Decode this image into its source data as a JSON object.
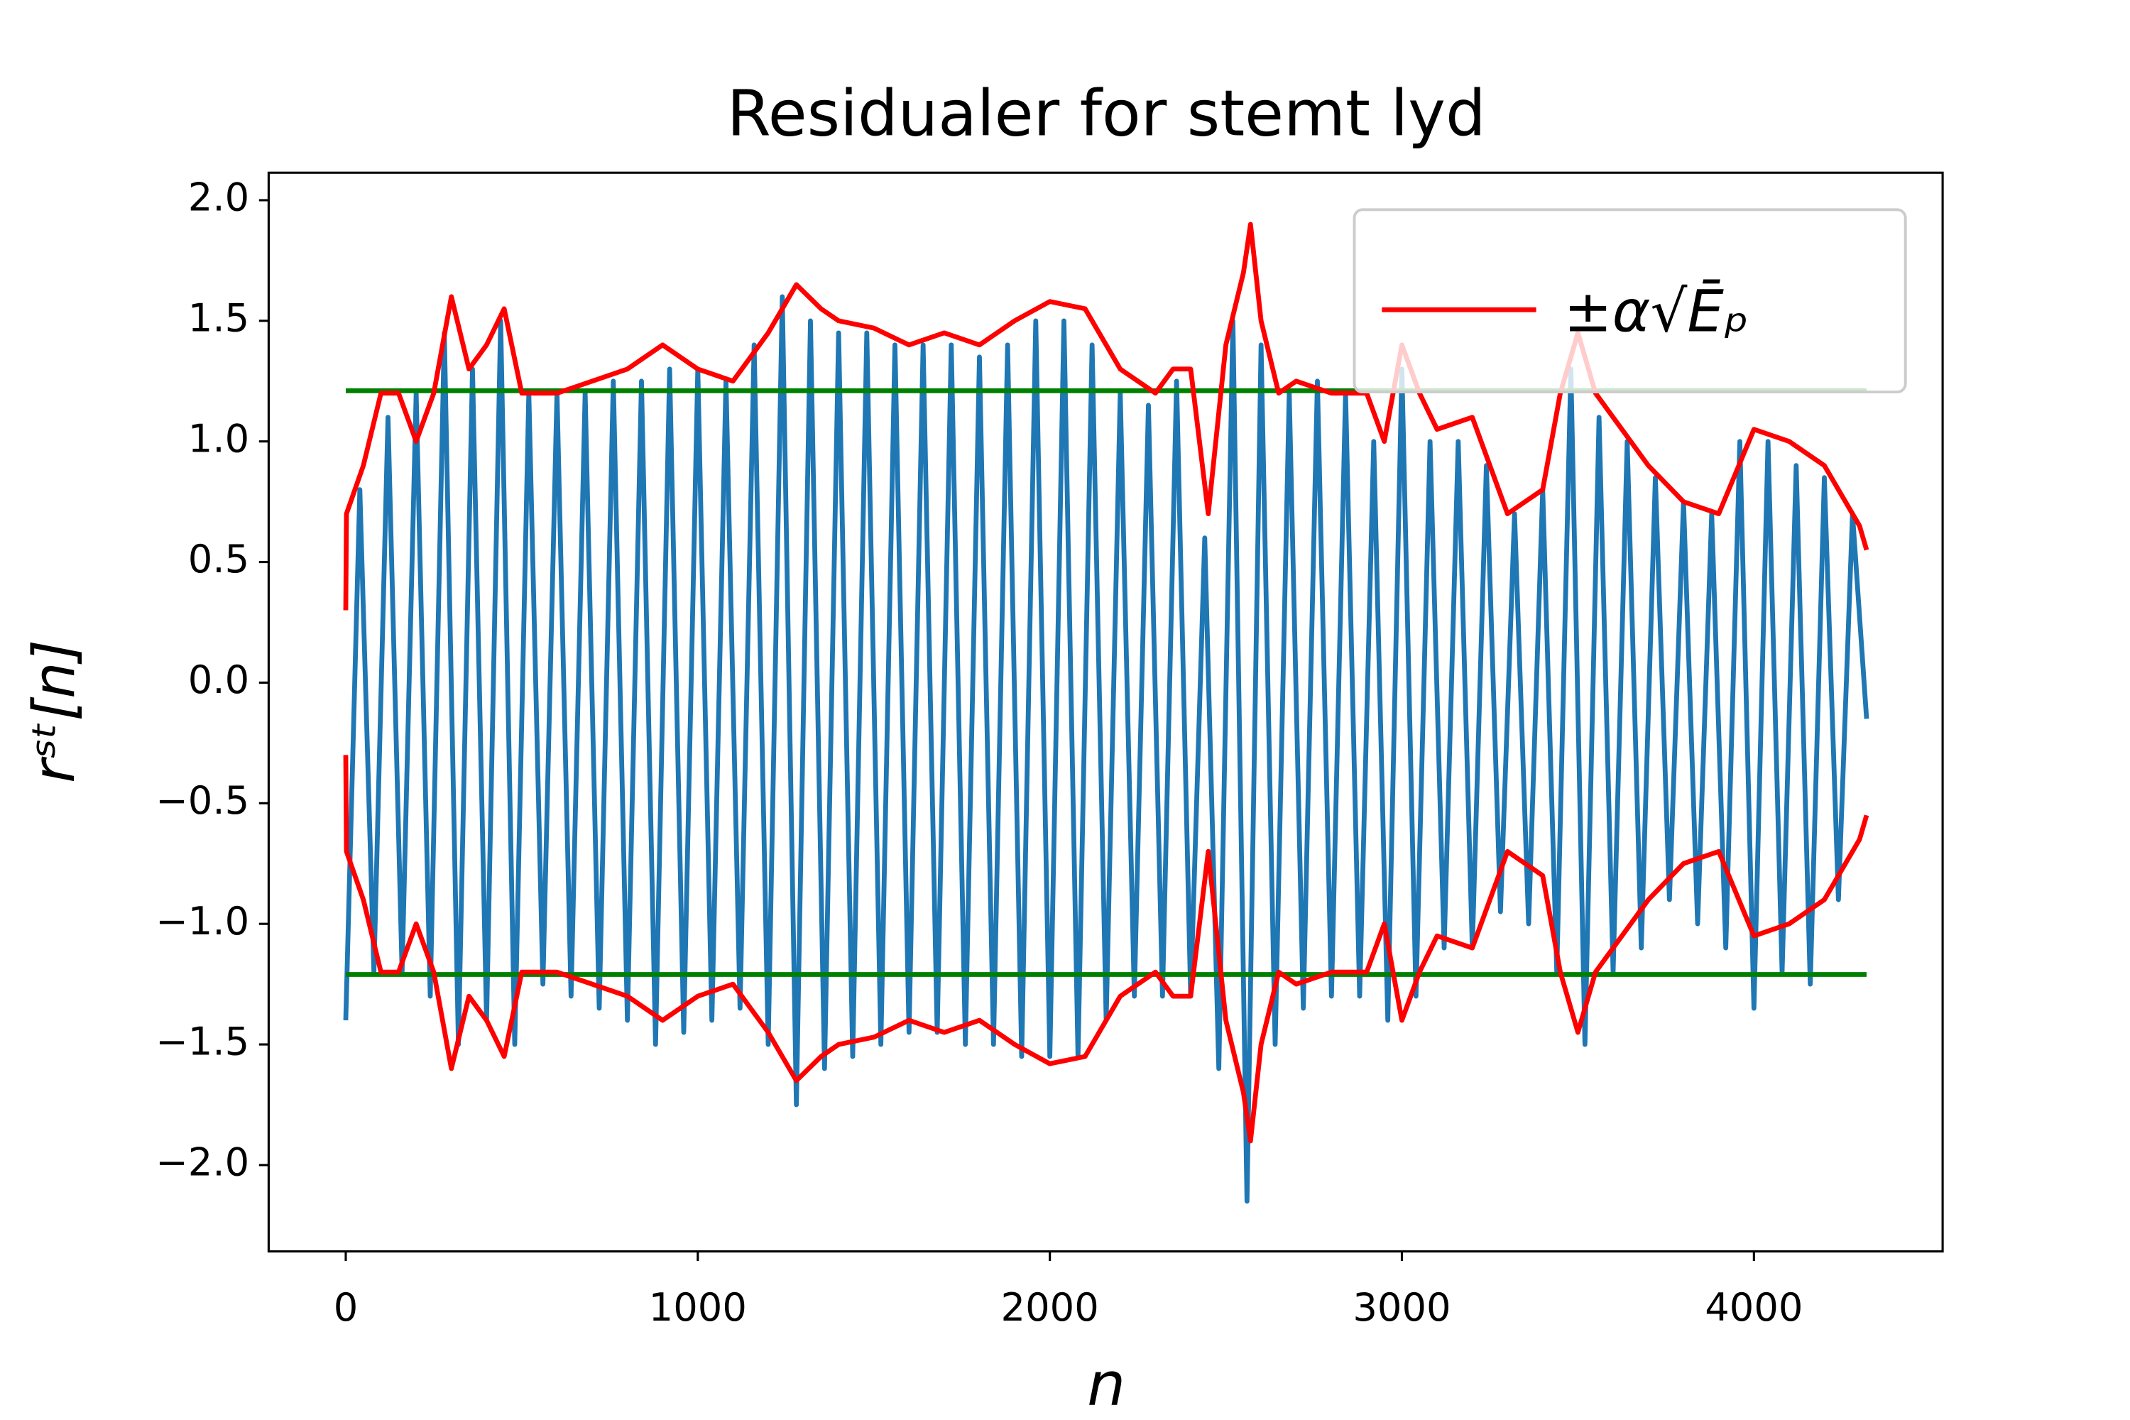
{
  "chart_data": {
    "type": "line",
    "title": "Residualer for stemt lyd",
    "x_label": "n",
    "y_label": "rˢᵗ[n]",
    "xlim": [
      -219,
      4536
    ],
    "ylim": [
      -2.358,
      2.114
    ],
    "xticks": [
      0,
      1000,
      2000,
      3000,
      4000
    ],
    "yticks": [
      {
        "value": -2.0,
        "label": "−2.0"
      },
      {
        "value": -1.5,
        "label": "−1.5"
      },
      {
        "value": -1.0,
        "label": "−1.0"
      },
      {
        "value": -0.5,
        "label": "−0.5"
      },
      {
        "value": 0.0,
        "label": "0.0"
      },
      0.5,
      {
        "value": 1.0,
        "label": "1.0"
      },
      1.5,
      {
        "value": 2.0,
        "label": "2.0"
      }
    ],
    "grid": false,
    "legend": "upper right",
    "series": [
      {
        "color": "#1f77b4",
        "x": [
          0,
          40,
          80,
          120,
          160,
          200,
          240,
          280,
          320,
          360,
          400,
          440,
          480,
          520,
          560,
          600,
          640,
          680,
          720,
          760,
          800,
          840,
          880,
          920,
          960,
          1000,
          1040,
          1080,
          1120,
          1160,
          1200,
          1240,
          1280,
          1320,
          1360,
          1400,
          1440,
          1480,
          1520,
          1560,
          1600,
          1640,
          1680,
          1720,
          1760,
          1800,
          1840,
          1880,
          1920,
          1960,
          2000,
          2040,
          2080,
          2120,
          2160,
          2200,
          2240,
          2280,
          2320,
          2360,
          2400,
          2440,
          2480,
          2520,
          2560,
          2600,
          2640,
          2680,
          2720,
          2760,
          2800,
          2840,
          2880,
          2920,
          2960,
          3000,
          3040,
          3080,
          3120,
          3160,
          3200,
          3240,
          3280,
          3320,
          3360,
          3400,
          3440,
          3480,
          3520,
          3560,
          3600,
          3640,
          3680,
          3720,
          3760,
          3800,
          3840,
          3880,
          3920,
          3960,
          4000,
          4040,
          4080,
          4120,
          4160,
          4200,
          4240,
          4280,
          4320
        ],
        "values": [
          -1.4,
          0.8,
          -1.2,
          1.1,
          -1.2,
          1.2,
          -1.3,
          1.45,
          -1.5,
          1.3,
          -1.4,
          1.5,
          -1.5,
          1.2,
          -1.25,
          1.2,
          -1.3,
          1.2,
          -1.35,
          1.25,
          -1.4,
          1.25,
          -1.5,
          1.3,
          -1.45,
          1.3,
          -1.4,
          1.25,
          -1.35,
          1.4,
          -1.5,
          1.6,
          -1.75,
          1.5,
          -1.6,
          1.45,
          -1.55,
          1.45,
          -1.5,
          1.4,
          -1.45,
          1.4,
          -1.45,
          1.4,
          -1.5,
          1.35,
          -1.5,
          1.4,
          -1.55,
          1.5,
          -1.55,
          1.5,
          -1.55,
          1.4,
          -1.4,
          1.2,
          -1.3,
          1.15,
          -1.3,
          1.25,
          -1.3,
          0.6,
          -1.6,
          1.5,
          -2.15,
          1.4,
          -1.5,
          1.2,
          -1.35,
          1.25,
          -1.3,
          1.2,
          -1.3,
          1.0,
          -1.4,
          1.3,
          -1.3,
          1.0,
          -1.1,
          1.0,
          -1.1,
          0.9,
          -0.95,
          0.7,
          -1.0,
          0.8,
          -1.2,
          1.3,
          -1.5,
          1.1,
          -1.2,
          1.0,
          -1.1,
          0.85,
          -0.9,
          0.75,
          -1.0,
          0.7,
          -1.1,
          1.0,
          -1.35,
          1.0,
          -1.2,
          0.9,
          -1.25,
          0.85,
          -0.9,
          0.7,
          -0.15
        ]
      },
      {
        "name": "±α√Ēₚ",
        "color": "#ff0000",
        "x": [
          0,
          2,
          50,
          100,
          150,
          200,
          250,
          300,
          350,
          400,
          450,
          500,
          600,
          700,
          800,
          900,
          1000,
          1100,
          1200,
          1280,
          1350,
          1400,
          1500,
          1600,
          1700,
          1800,
          1900,
          2000,
          2100,
          2200,
          2300,
          2350,
          2400,
          2450,
          2500,
          2550,
          2570,
          2600,
          2650,
          2700,
          2800,
          2900,
          2950,
          3000,
          3050,
          3100,
          3200,
          3250,
          3300,
          3400,
          3450,
          3500,
          3550,
          3600,
          3700,
          3800,
          3900,
          4000,
          4100,
          4200,
          4300,
          4320
        ],
        "values": [
          0.3,
          0.7,
          0.9,
          1.2,
          1.2,
          1.0,
          1.2,
          1.6,
          1.3,
          1.4,
          1.55,
          1.2,
          1.2,
          1.25,
          1.3,
          1.4,
          1.3,
          1.25,
          1.45,
          1.65,
          1.55,
          1.5,
          1.47,
          1.4,
          1.45,
          1.4,
          1.5,
          1.58,
          1.55,
          1.3,
          1.2,
          1.3,
          1.3,
          0.7,
          1.4,
          1.7,
          1.9,
          1.5,
          1.2,
          1.25,
          1.2,
          1.2,
          1.0,
          1.4,
          1.2,
          1.05,
          1.1,
          0.9,
          0.7,
          0.8,
          1.2,
          1.45,
          1.2,
          1.1,
          0.9,
          0.75,
          0.7,
          1.05,
          1.0,
          0.9,
          0.65,
          0.55
        ]
      },
      {
        "color": "#ff0000",
        "x": [
          0,
          2,
          50,
          100,
          150,
          200,
          250,
          300,
          350,
          400,
          450,
          500,
          600,
          700,
          800,
          900,
          1000,
          1100,
          1200,
          1280,
          1350,
          1400,
          1500,
          1600,
          1700,
          1800,
          1900,
          2000,
          2100,
          2200,
          2300,
          2350,
          2400,
          2450,
          2500,
          2550,
          2570,
          2600,
          2650,
          2700,
          2800,
          2900,
          2950,
          3000,
          3050,
          3100,
          3200,
          3250,
          3300,
          3400,
          3450,
          3500,
          3550,
          3600,
          3700,
          3800,
          3900,
          4000,
          4100,
          4200,
          4300,
          4320
        ],
        "values": [
          -0.3,
          -0.7,
          -0.9,
          -1.2,
          -1.2,
          -1.0,
          -1.2,
          -1.6,
          -1.3,
          -1.4,
          -1.55,
          -1.2,
          -1.2,
          -1.25,
          -1.3,
          -1.4,
          -1.3,
          -1.25,
          -1.45,
          -1.65,
          -1.55,
          -1.5,
          -1.47,
          -1.4,
          -1.45,
          -1.4,
          -1.5,
          -1.58,
          -1.55,
          -1.3,
          -1.2,
          -1.3,
          -1.3,
          -0.7,
          -1.4,
          -1.7,
          -1.9,
          -1.5,
          -1.2,
          -1.25,
          -1.2,
          -1.2,
          -1.0,
          -1.4,
          -1.2,
          -1.05,
          -1.1,
          -0.9,
          -0.7,
          -0.8,
          -1.2,
          -1.45,
          -1.2,
          -1.1,
          -0.9,
          -0.75,
          -0.7,
          -1.05,
          -1.0,
          -0.9,
          -0.65,
          -0.55
        ]
      }
    ],
    "hlines": [
      {
        "y": 1.21,
        "xmin": 0,
        "xmax": 4320,
        "color": "#008000"
      },
      {
        "y": -1.21,
        "xmin": 0,
        "xmax": 4320,
        "color": "#008000"
      }
    ]
  }
}
